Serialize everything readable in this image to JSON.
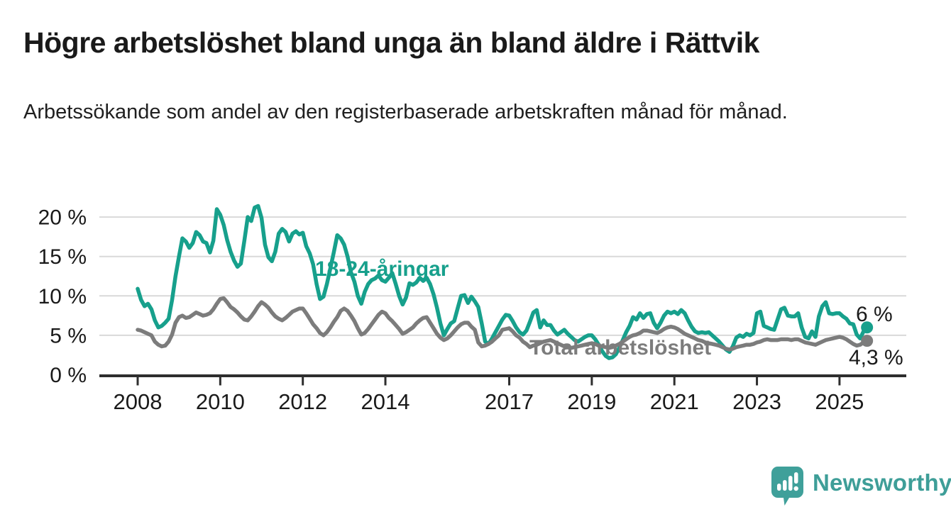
{
  "header": {
    "title": "Högre arbetslöshet bland unga än bland äldre i Rättvik",
    "subtitle": "Arbetssökande som andel av den registerbaserade arbetskraften månad för månad."
  },
  "chart_data": {
    "type": "line",
    "title": "Högre arbetslöshet bland unga än bland äldre i Rättvik",
    "subtitle": "Arbetssökande som andel av den registerbaserade arbetskraften månad för månad.",
    "x_unit": "month",
    "x_start_year": 2008,
    "x_start_month": 1,
    "x_end_year": 2025,
    "x_end_month": 9,
    "ylim": [
      0,
      21.5
    ],
    "ytick_values": [
      0,
      5,
      10,
      15,
      20
    ],
    "ytick_labels": [
      "0 %",
      "5 %",
      "10 %",
      "15 %",
      "20 %"
    ],
    "xtick_years": [
      2008,
      2010,
      2012,
      2014,
      2017,
      2019,
      2021,
      2023,
      2025
    ],
    "grid": true,
    "legend_position": "inline-annotations",
    "colors": {
      "youth": "#17A08C",
      "total": "#7C7C7C",
      "grid": "#D9D9D9",
      "axis": "#2E2E2E",
      "tick_text": "#1A1A1A",
      "value_label": "#1A1A1A"
    },
    "series": [
      {
        "name": "18-24-åringar",
        "color": "#17A08C",
        "end_label": "6 %",
        "values": [
          10.9,
          9.5,
          8.7,
          9.0,
          8.3,
          6.9,
          6.0,
          6.2,
          6.6,
          7.1,
          9.5,
          12.5,
          15.0,
          17.3,
          16.9,
          16.1,
          16.7,
          18.1,
          17.7,
          16.9,
          16.7,
          15.5,
          17.0,
          21.0,
          20.3,
          19.0,
          17.1,
          15.6,
          14.5,
          13.7,
          14.1,
          17.0,
          20.0,
          19.5,
          21.2,
          21.4,
          19.9,
          16.5,
          14.9,
          14.4,
          15.6,
          17.9,
          18.5,
          18.1,
          16.9,
          17.9,
          18.2,
          17.8,
          18.0,
          16.3,
          15.4,
          14.0,
          11.5,
          9.6,
          9.9,
          11.5,
          13.5,
          15.5,
          17.7,
          17.3,
          16.5,
          15.0,
          13.0,
          11.8,
          10.0,
          9.0,
          10.5,
          11.5,
          12.0,
          12.2,
          12.6,
          12.0,
          11.8,
          12.3,
          12.9,
          11.5,
          10.0,
          8.9,
          9.8,
          11.6,
          11.4,
          11.7,
          12.3,
          11.9,
          12.3,
          11.5,
          10.2,
          8.5,
          6.5,
          5.0,
          5.8,
          6.5,
          6.8,
          8.4,
          10.0,
          10.1,
          9.1,
          9.9,
          9.3,
          8.6,
          6.5,
          4.2,
          3.9,
          4.6,
          5.4,
          6.2,
          7.0,
          7.6,
          7.5,
          6.8,
          6.0,
          5.4,
          5.1,
          5.6,
          6.7,
          7.9,
          8.2,
          6.0,
          6.9,
          6.3,
          6.3,
          5.6,
          5.1,
          5.4,
          5.7,
          5.2,
          4.8,
          4.4,
          4.2,
          4.5,
          4.8,
          5.0,
          5.0,
          4.5,
          3.8,
          3.0,
          2.4,
          2.1,
          2.2,
          2.6,
          3.4,
          4.4,
          5.4,
          6.2,
          7.3,
          7.0,
          7.8,
          7.2,
          7.7,
          7.8,
          6.6,
          5.9,
          6.6,
          7.5,
          8.0,
          7.8,
          8.0,
          7.7,
          8.2,
          7.8,
          6.9,
          6.1,
          5.5,
          5.3,
          5.4,
          5.3,
          5.4,
          5.0,
          4.6,
          4.2,
          3.7,
          3.2,
          2.9,
          3.6,
          4.7,
          5.0,
          4.8,
          5.2,
          5.0,
          5.3,
          7.8,
          8.0,
          6.2,
          6.0,
          5.8,
          5.7,
          7.0,
          8.3,
          8.5,
          7.5,
          7.4,
          7.4,
          7.8,
          6.0,
          4.8,
          4.6,
          5.5,
          4.8,
          7.4,
          8.7,
          9.2,
          7.8,
          7.7,
          7.8,
          7.8,
          7.4,
          7.1,
          6.5,
          6.4,
          5.1,
          4.6,
          5.5,
          6.0
        ]
      },
      {
        "name": "Total arbetslöshet",
        "color": "#7C7C7C",
        "end_label": "4,3 %",
        "values": [
          5.7,
          5.6,
          5.4,
          5.2,
          5.0,
          4.2,
          3.8,
          3.6,
          3.7,
          4.2,
          5.1,
          6.6,
          7.3,
          7.5,
          7.2,
          7.3,
          7.6,
          7.9,
          7.7,
          7.5,
          7.6,
          7.8,
          8.3,
          9.0,
          9.6,
          9.7,
          9.2,
          8.6,
          8.3,
          7.9,
          7.4,
          7.0,
          6.9,
          7.4,
          8.0,
          8.7,
          9.2,
          8.9,
          8.5,
          7.9,
          7.4,
          7.1,
          6.9,
          7.2,
          7.6,
          8.0,
          8.2,
          8.4,
          8.4,
          7.8,
          7.1,
          6.4,
          5.9,
          5.3,
          5.0,
          5.4,
          6.0,
          6.7,
          7.3,
          8.1,
          8.4,
          8.1,
          7.5,
          6.8,
          5.9,
          5.1,
          5.3,
          5.8,
          6.4,
          7.0,
          7.6,
          8.0,
          7.8,
          7.2,
          6.8,
          6.3,
          5.8,
          5.2,
          5.4,
          5.7,
          6.0,
          6.5,
          6.9,
          7.2,
          7.3,
          6.6,
          5.9,
          5.2,
          4.7,
          4.4,
          4.6,
          5.0,
          5.5,
          6.0,
          6.4,
          6.6,
          6.6,
          6.1,
          5.7,
          4.1,
          3.6,
          3.7,
          3.9,
          4.2,
          4.6,
          5.0,
          5.7,
          5.8,
          5.9,
          5.5,
          5.0,
          4.7,
          4.2,
          3.9,
          3.5,
          3.7,
          3.8,
          4.0,
          4.2,
          4.3,
          4.4,
          4.2,
          4.0,
          3.8,
          3.6,
          3.5,
          3.4,
          3.5,
          3.6,
          3.7,
          3.8,
          3.9,
          4.0,
          3.9,
          3.7,
          3.6,
          3.5,
          3.4,
          3.5,
          3.7,
          3.9,
          4.2,
          4.5,
          4.8,
          5.0,
          5.1,
          5.3,
          5.6,
          5.6,
          5.5,
          5.4,
          5.3,
          5.5,
          5.8,
          6.0,
          6.1,
          6.0,
          5.8,
          5.5,
          5.2,
          5.0,
          4.8,
          4.6,
          4.4,
          4.3,
          4.1,
          4.0,
          3.9,
          3.8,
          3.7,
          3.5,
          3.3,
          3.2,
          3.3,
          3.5,
          3.6,
          3.7,
          3.8,
          3.8,
          3.9,
          4.1,
          4.2,
          4.4,
          4.5,
          4.4,
          4.4,
          4.4,
          4.5,
          4.5,
          4.5,
          4.4,
          4.5,
          4.5,
          4.3,
          4.1,
          4.0,
          3.9,
          3.8,
          4.0,
          4.2,
          4.4,
          4.5,
          4.6,
          4.7,
          4.8,
          4.7,
          4.5,
          4.2,
          3.9,
          3.7,
          3.8,
          4.1,
          4.3
        ]
      }
    ]
  },
  "footer": {
    "brand": "Newsworthy",
    "brand_color": "#3E9E98",
    "logo_icon": "speech-bubble-bar-chart-icon"
  }
}
